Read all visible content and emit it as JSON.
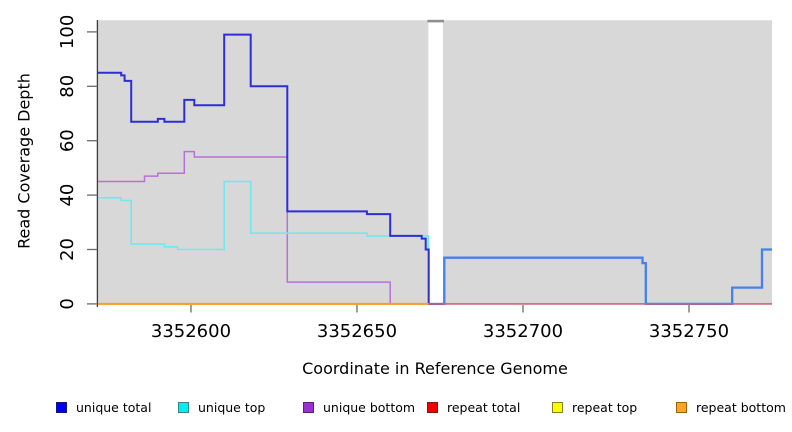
{
  "chart_data": {
    "type": "line",
    "step_style": "step-after",
    "title": "",
    "xlabel": "Coordinate in Reference Genome",
    "ylabel": "Read Coverage Depth",
    "xlim": [
      3352572,
      3352775
    ],
    "ylim": [
      0,
      100
    ],
    "x_ticks": [
      3352600,
      3352650,
      3352700,
      3352750
    ],
    "y_ticks": [
      0,
      20,
      40,
      60,
      80,
      100
    ],
    "grid": false,
    "legend_position": "bottom",
    "colors": {
      "plot_background": "#d8d8d8",
      "axis_line": "#3c3c3c",
      "tick": "#6a6a6a",
      "tick_label": "#000000",
      "gap_fill": "#ffffff",
      "gap_cap": "#8f8f8f"
    },
    "gap_region": {
      "x_start": 3352671.5,
      "x_end": 3352675.9
    },
    "series": [
      {
        "name": "unique bottom",
        "segments": [
          {
            "color": "#b671d9",
            "width": 1.5,
            "points": [
              [
                3352572,
                45
              ],
              [
                3352586,
                47
              ],
              [
                3352590,
                48
              ],
              [
                3352598,
                56
              ],
              [
                3352601,
                54
              ],
              [
                3352629,
                8
              ],
              [
                3352660,
                0
              ],
              [
                3352671.5,
                0
              ]
            ]
          }
        ]
      },
      {
        "name": "unique top",
        "segments": [
          {
            "color": "#6ee9ee",
            "width": 1.6,
            "points": [
              [
                3352572,
                39
              ],
              [
                3352579,
                38
              ],
              [
                3352582,
                22
              ],
              [
                3352592,
                21
              ],
              [
                3352596,
                20
              ],
              [
                3352610,
                45
              ],
              [
                3352618,
                26
              ],
              [
                3352653,
                25
              ],
              [
                3352671.5,
                0
              ],
              [
                3352675.9,
                0
              ]
            ]
          }
        ]
      },
      {
        "name": "unique total",
        "segments": [
          {
            "color": "#2e2ed6",
            "width": 2,
            "points": [
              [
                3352572,
                85
              ],
              [
                3352579,
                84
              ],
              [
                3352580,
                82
              ],
              [
                3352582,
                67
              ],
              [
                3352590,
                68
              ],
              [
                3352592,
                67
              ],
              [
                3352598,
                75
              ],
              [
                3352601,
                73
              ],
              [
                3352610,
                99
              ],
              [
                3352618,
                80
              ],
              [
                3352629,
                34
              ],
              [
                3352653,
                33
              ],
              [
                3352660,
                25
              ],
              [
                3352669.5,
                24
              ],
              [
                3352670.7,
                20
              ],
              [
                3352671.6,
                0
              ],
              [
                3352676,
                0
              ]
            ]
          },
          {
            "color": "#4481ea",
            "width": 2.3,
            "points": [
              [
                3352676,
                0
              ],
              [
                3352676.3,
                17
              ],
              [
                3352736,
                15
              ],
              [
                3352737,
                0
              ],
              [
                3352763,
                6
              ],
              [
                3352772,
                20
              ],
              [
                3352775,
                20
              ]
            ]
          }
        ]
      },
      {
        "name": "repeat total",
        "segments": [
          {
            "color": "#dc5b76",
            "width": 1.5,
            "points": [
              [
                3352572,
                0
              ],
              [
                3352775,
                0
              ]
            ]
          }
        ]
      },
      {
        "name": "repeat top",
        "segments": [
          {
            "color": "#ffdf00",
            "width": 1.5,
            "points": [
              [
                3352572,
                0
              ],
              [
                3352671.5,
                0
              ]
            ]
          }
        ]
      },
      {
        "name": "repeat bottom",
        "segments": [
          {
            "color": "#ff9c28",
            "width": 2,
            "points": [
              [
                3352572,
                0
              ],
              [
                3352671.5,
                0
              ]
            ]
          }
        ]
      }
    ],
    "legend": [
      {
        "label": "unique total",
        "fill": "#0000f0",
        "border": "#14147a"
      },
      {
        "label": "unique top",
        "fill": "#00eded",
        "border": "#3f8484"
      },
      {
        "label": "unique bottom",
        "fill": "#9b30d0",
        "border": "#58207c"
      },
      {
        "label": "repeat total",
        "fill": "#f10000",
        "border": "#7c1a1a"
      },
      {
        "label": "repeat top",
        "fill": "#fbfb00",
        "border": "#83831f"
      },
      {
        "label": "repeat bottom",
        "fill": "#ffa51e",
        "border": "#96650f"
      }
    ]
  }
}
